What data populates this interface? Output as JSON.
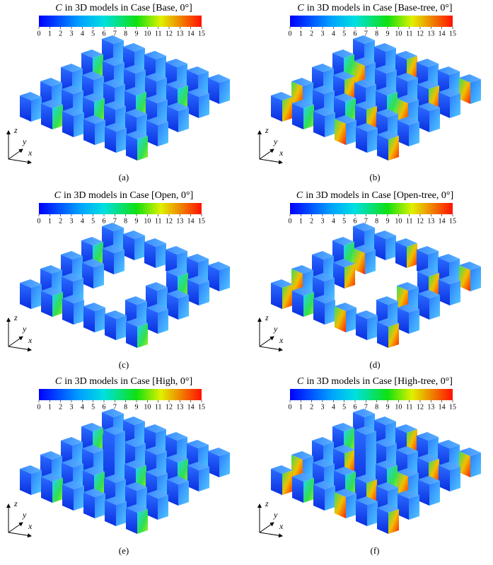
{
  "panels": [
    {
      "label": "(a)",
      "variable": "C",
      "title": "in 3D models in Case [Base, 0°]",
      "colorbar": {
        "lim": [
          0,
          15
        ],
        "ticks": [
          0,
          1,
          2,
          3,
          4,
          5,
          6,
          7,
          8,
          9,
          10,
          11,
          12,
          13,
          14,
          15
        ]
      },
      "axis_labels": [
        "z",
        "y",
        "x"
      ]
    },
    {
      "label": "(b)",
      "variable": "C",
      "title": "in 3D models in Case [Base-tree, 0°]",
      "colorbar": {
        "lim": [
          0,
          15
        ],
        "ticks": [
          0,
          1,
          2,
          3,
          4,
          5,
          6,
          7,
          8,
          9,
          10,
          11,
          12,
          13,
          14,
          15
        ]
      },
      "axis_labels": [
        "z",
        "y",
        "x"
      ]
    },
    {
      "label": "(c)",
      "variable": "C",
      "title": "in 3D models in Case [Open, 0°]",
      "colorbar": {
        "lim": [
          0,
          15
        ],
        "ticks": [
          0,
          1,
          2,
          3,
          4,
          5,
          6,
          7,
          8,
          9,
          10,
          11,
          12,
          13,
          14,
          15
        ]
      },
      "axis_labels": [
        "z",
        "y",
        "x"
      ]
    },
    {
      "label": "(d)",
      "variable": "C",
      "title": "in 3D models in Case [Open-tree, 0°]",
      "colorbar": {
        "lim": [
          0,
          15
        ],
        "ticks": [
          0,
          1,
          2,
          3,
          4,
          5,
          6,
          7,
          8,
          9,
          10,
          11,
          12,
          13,
          14,
          15
        ]
      },
      "axis_labels": [
        "z",
        "y",
        "x"
      ]
    },
    {
      "label": "(e)",
      "variable": "C",
      "title": "in 3D models in Case [High, 0°]",
      "colorbar": {
        "lim": [
          0,
          15
        ],
        "ticks": [
          0,
          1,
          2,
          3,
          4,
          5,
          6,
          7,
          8,
          9,
          10,
          11,
          12,
          13,
          14,
          15
        ]
      },
      "axis_labels": [
        "z",
        "y",
        "x"
      ]
    },
    {
      "label": "(f)",
      "variable": "C",
      "title": "in 3D models in Case [High-tree, 0°]",
      "colorbar": {
        "lim": [
          0,
          15
        ],
        "ticks": [
          0,
          1,
          2,
          3,
          4,
          5,
          6,
          7,
          8,
          9,
          10,
          11,
          12,
          13,
          14,
          15
        ]
      },
      "axis_labels": [
        "z",
        "y",
        "x"
      ]
    }
  ]
}
